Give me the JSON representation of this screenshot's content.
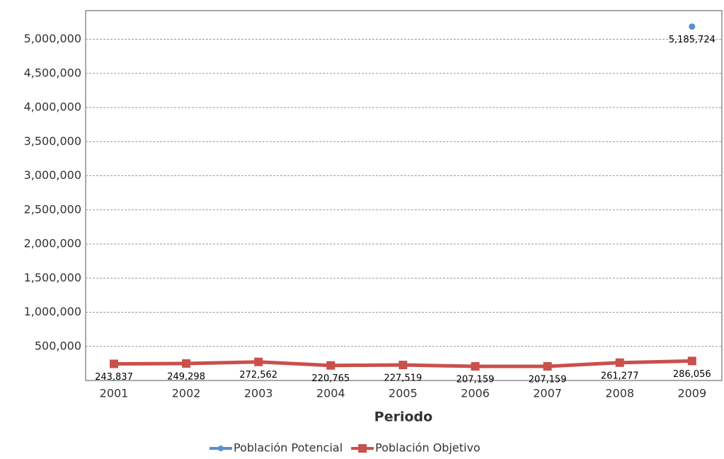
{
  "chart_data": {
    "type": "line",
    "x_label": "Periodo",
    "categories": [
      "2001",
      "2002",
      "2003",
      "2004",
      "2005",
      "2006",
      "2007",
      "2008",
      "2009"
    ],
    "series": [
      {
        "name": "Población Potencial",
        "color": "#5b8fd0",
        "values": [
          null,
          null,
          null,
          null,
          null,
          null,
          null,
          null,
          5185724
        ],
        "value_labels": [
          null,
          null,
          null,
          null,
          null,
          null,
          null,
          null,
          "5,185,724"
        ]
      },
      {
        "name": "Población Objetivo",
        "color": "#c9504b",
        "values": [
          243837,
          249298,
          272562,
          220765,
          227519,
          207159,
          207159,
          261277,
          286056
        ],
        "value_labels": [
          "243,837",
          "249,298",
          "272,562",
          "220,765",
          "227,519",
          "207,159",
          "207,159",
          "261,277",
          "286,056"
        ]
      }
    ],
    "ylim": [
      0,
      5420000
    ],
    "yticks": [
      {
        "value": 500000,
        "label": "500,000"
      },
      {
        "value": 1000000,
        "label": "1,000,000"
      },
      {
        "value": 1500000,
        "label": "1,500,000"
      },
      {
        "value": 2000000,
        "label": "2,000,000"
      },
      {
        "value": 2500000,
        "label": "2,500,000"
      },
      {
        "value": 3000000,
        "label": "3,000,000"
      },
      {
        "value": 3500000,
        "label": "3,500,000"
      },
      {
        "value": 4000000,
        "label": "4,000,000"
      },
      {
        "value": 4500000,
        "label": "4,500,000"
      },
      {
        "value": 5000000,
        "label": "5,000,000"
      }
    ],
    "grid": true,
    "legend": "bottom"
  }
}
